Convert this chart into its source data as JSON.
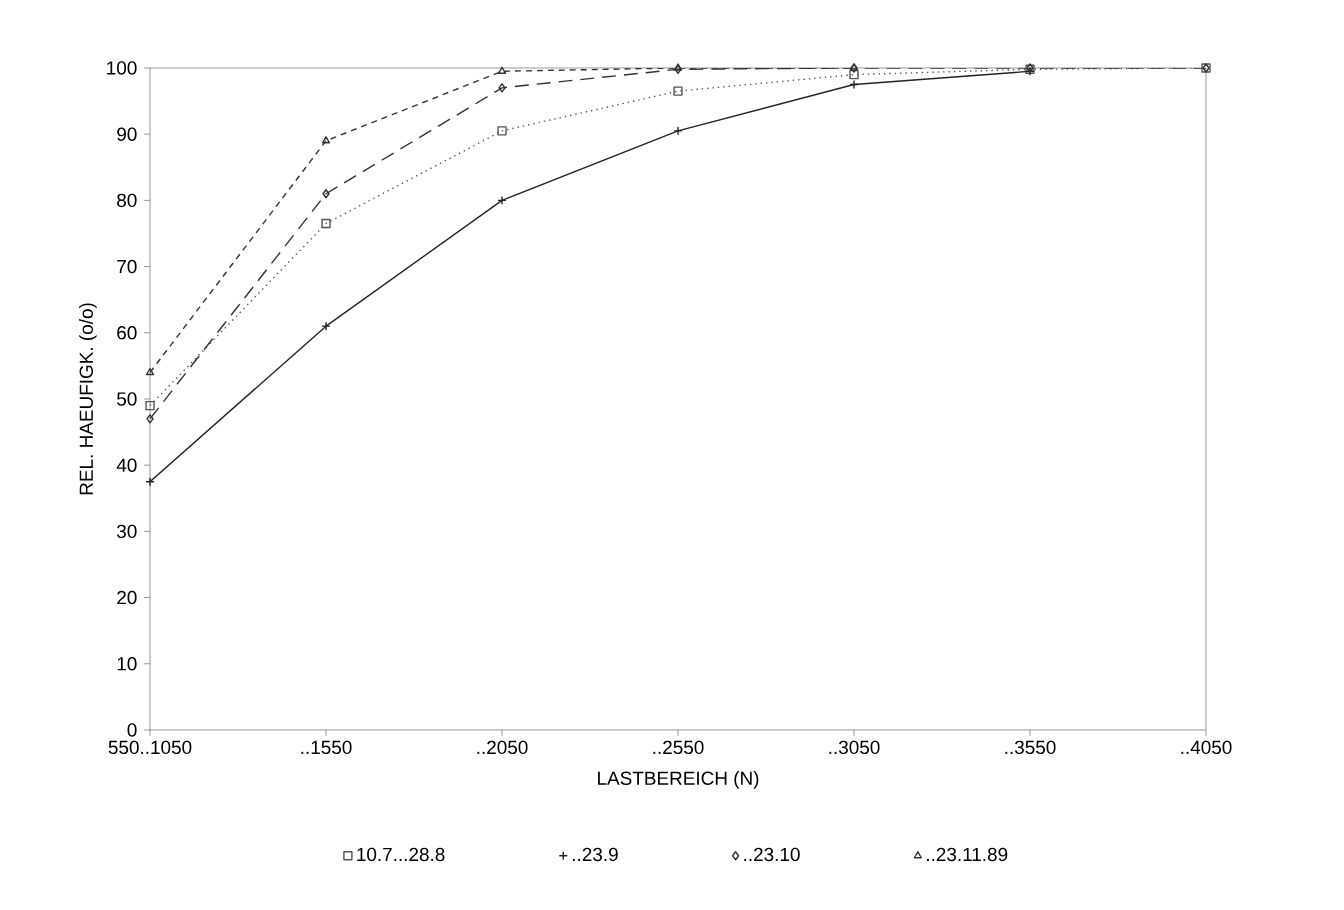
{
  "chart_data": {
    "type": "line",
    "xlabel": "LASTBEREICH (N)",
    "ylabel": "REL. HAEUFIGK. (o/o)",
    "categories": [
      "550..1050",
      "..1550",
      "..2050",
      "..2550",
      "..3050",
      "..3550",
      "..4050"
    ],
    "ylim": [
      0,
      100
    ],
    "yticks": [
      0,
      10,
      20,
      30,
      40,
      50,
      60,
      70,
      80,
      90,
      100
    ],
    "legend": "bottom",
    "grid": false,
    "series": [
      {
        "name": "10.7...28.8",
        "color": "#555555",
        "marker": "square",
        "line_style": "dotted",
        "values": [
          49,
          76.5,
          90.5,
          96.5,
          99,
          99.8,
          100
        ]
      },
      {
        "name": "..23.9",
        "color": "#222222",
        "marker": "cross",
        "line_style": "solid",
        "values": [
          37.5,
          61,
          80,
          90.5,
          97.5,
          99.5,
          null
        ]
      },
      {
        "name": "..23.10",
        "color": "#333333",
        "marker": "diamond",
        "line_style": "dashed",
        "values": [
          47,
          81,
          97,
          99.8,
          100,
          100,
          100
        ]
      },
      {
        "name": "..23.11.89",
        "color": "#333333",
        "marker": "triangle",
        "line_style": "densely dashed",
        "values": [
          54,
          89,
          99.5,
          100,
          100,
          null,
          null
        ]
      }
    ]
  }
}
